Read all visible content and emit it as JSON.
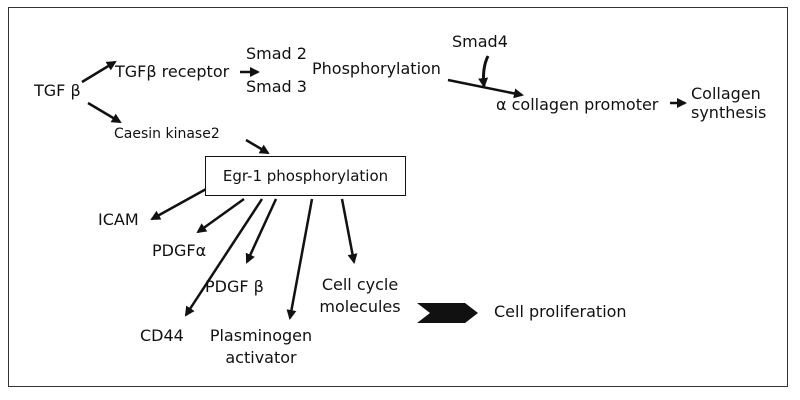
{
  "diagram": {
    "nodes": {
      "tgfb": "TGF β",
      "tgfb_receptor": "TGFβ receptor",
      "smad2": "Smad 2",
      "smad3": "Smad 3",
      "phosphorylation": "Phosphorylation",
      "smad4": "Smad4",
      "collagen_promoter": "α collagen promoter",
      "collagen_line1": "Collagen",
      "collagen_line2": "synthesis",
      "caesin_kinase": "Caesin kinase2",
      "egr1": "Egr-1 phosphorylation",
      "icam": "ICAM",
      "pdgfa": "PDGFα",
      "pdgfb": "PDGF β",
      "cd44": "CD44",
      "plasminogen_line1": "Plasminogen",
      "plasminogen_line2": "activator",
      "cellcycle_line1": "Cell cycle",
      "cellcycle_line2": "molecules",
      "cell_proliferation": "Cell proliferation"
    },
    "colors": {
      "line": "#111111",
      "frame": "#333333",
      "background": "#ffffff"
    }
  }
}
